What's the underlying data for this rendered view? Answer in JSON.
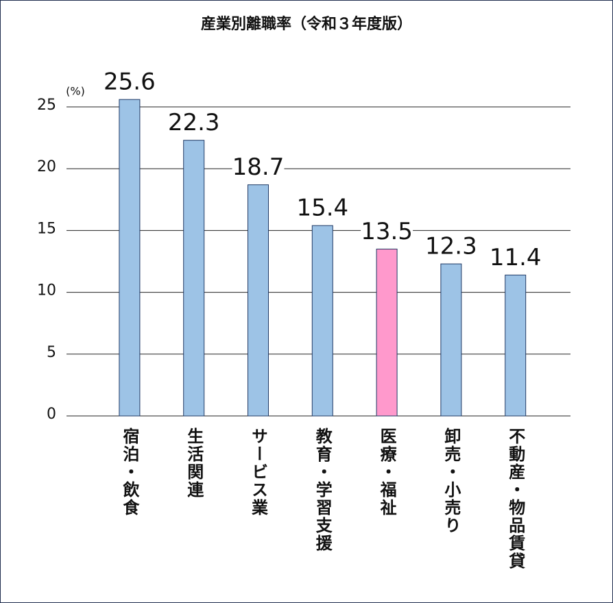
{
  "chart_data": {
    "type": "bar",
    "title": "産業別離職率（令和３年度版）",
    "y_unit": "(%)",
    "categories": [
      "宿泊・飲食",
      "生活関連",
      "サービス業",
      "教育・学習支援",
      "医療・福祉",
      "卸売・小売り",
      "不動産・物品賃貸"
    ],
    "values": [
      25.6,
      22.3,
      18.7,
      15.4,
      13.5,
      12.3,
      11.4
    ],
    "colors": [
      "#9dc3e6",
      "#9dc3e6",
      "#9dc3e6",
      "#9dc3e6",
      "#ff99cc",
      "#9dc3e6",
      "#9dc3e6"
    ],
    "ylim": [
      0,
      25
    ],
    "yticks": [
      0,
      5,
      10,
      15,
      20,
      25
    ],
    "grid": true
  }
}
